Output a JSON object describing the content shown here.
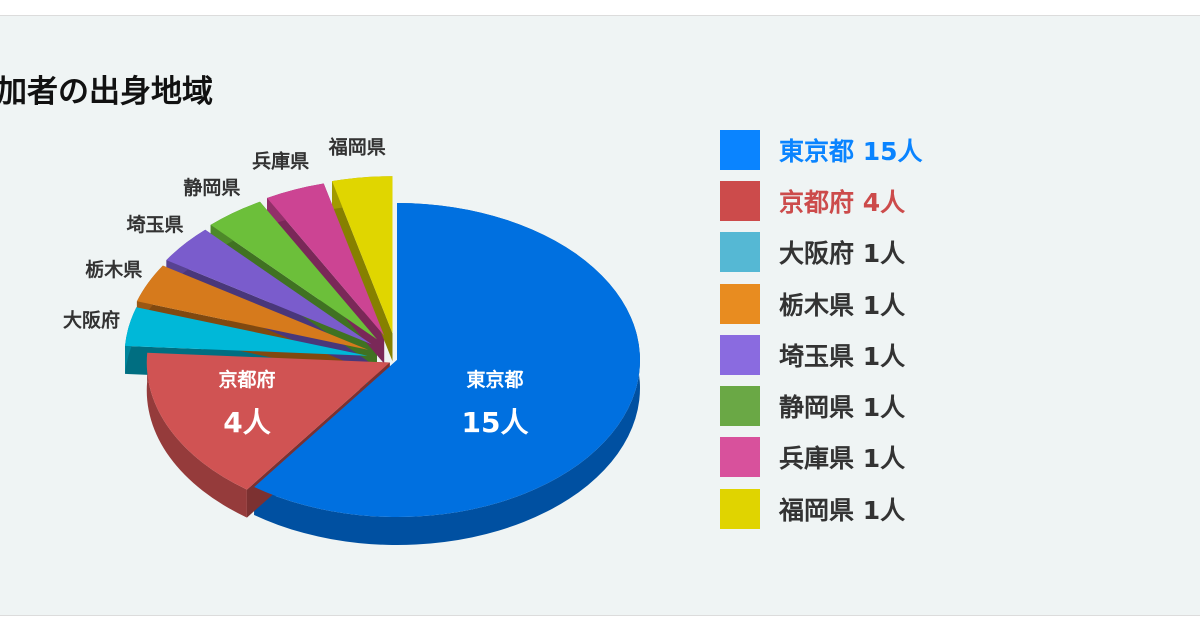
{
  "title": "加者の出身地域",
  "chart_data": {
    "type": "pie",
    "style": "3d-exploded",
    "unit": "人",
    "categories": [
      "東京都",
      "京都府",
      "大阪府",
      "栃木県",
      "埼玉県",
      "静岡県",
      "兵庫県",
      "福岡県"
    ],
    "values": [
      15,
      4,
      1,
      1,
      1,
      1,
      1,
      1
    ],
    "slice_colors": [
      "#0070e0",
      "#d05353",
      "#00b8d8",
      "#d67a1c",
      "#7a5ccc",
      "#6cbf3a",
      "#cc4493",
      "#e0d600"
    ],
    "legend_colors": [
      "#0a84ff",
      "#cc4b4b",
      "#55b8d4",
      "#e88c20",
      "#8a6be0",
      "#6aa845",
      "#d8519c",
      "#e0d400"
    ],
    "legend_text_colors": [
      "#0a84ff",
      "#cc4b4b",
      "#333333",
      "#333333",
      "#333333",
      "#333333",
      "#333333",
      "#333333"
    ],
    "legend_labels": [
      "東京都 15人",
      "京都府 4人",
      "大阪府 1人",
      "栃木県 1人",
      "埼玉県 1人",
      "静岡県 1人",
      "兵庫県 1人",
      "福岡県 1人"
    ],
    "inside_labels": [
      {
        "name": "東京都",
        "count": "15人"
      },
      {
        "name": "京都府",
        "count": "4人"
      }
    ],
    "legend_position": "right"
  }
}
